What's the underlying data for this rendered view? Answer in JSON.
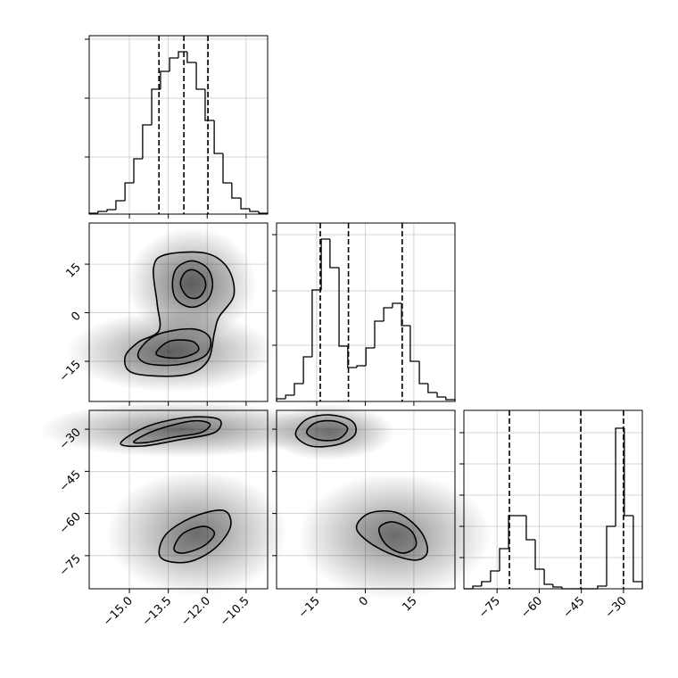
{
  "chart_data": {
    "type": "corner",
    "color": "#000000",
    "grid": true,
    "params": [
      {
        "lim": [
          -16.55,
          -9.67
        ],
        "ticks": [
          {
            "value": -15.0,
            "label": "−15.0"
          },
          {
            "value": -13.5,
            "label": "−13.5"
          },
          {
            "value": -12.0,
            "label": "−12.0"
          },
          {
            "value": -10.5,
            "label": "−10.5"
          }
        ]
      },
      {
        "lim": [
          -27.4,
          27.7
        ],
        "ticks": [
          {
            "value": -15,
            "label": "−15"
          },
          0,
          15
        ]
      },
      {
        "lim": [
          -86.8,
          -23.3
        ],
        "ticks": [
          {
            "value": -75,
            "label": "−75"
          },
          {
            "value": -60,
            "label": "−60"
          },
          {
            "value": -45,
            "label": "−45"
          },
          {
            "value": -30,
            "label": "−30"
          }
        ]
      }
    ],
    "histograms": [
      {
        "bins": [
          -16.55,
          -16.21,
          -15.86,
          -15.52,
          -15.17,
          -14.83,
          -14.49,
          -14.14,
          -13.8,
          -13.45,
          -13.11,
          -12.77,
          -12.42,
          -12.08,
          -11.73,
          -11.39,
          -11.05,
          -10.7,
          -10.36,
          -10.01,
          -9.67
        ],
        "counts": [
          1,
          3,
          5,
          15,
          35,
          62,
          100,
          140,
          160,
          175,
          182,
          170,
          140,
          105,
          68,
          35,
          18,
          6,
          3,
          1
        ],
        "ylim": [
          0,
          200
        ],
        "yticks": [
          64,
          130,
          196
        ],
        "quantiles": [
          -13.86,
          -12.9,
          -11.97
        ]
      },
      {
        "bins": [
          -27.4,
          -24.6,
          -21.9,
          -19.1,
          -16.4,
          -13.6,
          -10.9,
          -8.1,
          -5.4,
          -2.6,
          0.2,
          2.9,
          5.7,
          8.4,
          11.2,
          13.9,
          16.7,
          19.4,
          22.2,
          24.9,
          27.7
        ],
        "counts": [
          3,
          7,
          20,
          50,
          125,
          182,
          150,
          62,
          38,
          40,
          60,
          90,
          105,
          110,
          85,
          45,
          20,
          10,
          5,
          2
        ],
        "ylim": [
          0,
          200
        ],
        "yticks": [
          63,
          124,
          187
        ],
        "quantiles": [
          -13.9,
          -5.2,
          11.4
        ]
      },
      {
        "bins": [
          -86.8,
          -83.6,
          -80.5,
          -77.3,
          -74.1,
          -70.9,
          -67.8,
          -64.6,
          -61.4,
          -58.2,
          -55.1,
          -51.9,
          -48.7,
          -45.5,
          -42.4,
          -39.2,
          -36.0,
          -32.8,
          -29.7,
          -26.5,
          -23.3
        ],
        "counts": [
          0,
          3,
          8,
          20,
          45,
          82,
          82,
          55,
          22,
          5,
          2,
          0,
          0,
          0,
          0,
          3,
          70,
          180,
          82,
          8
        ],
        "ylim": [
          0,
          200
        ],
        "yticks": [
          35,
          70,
          105,
          140,
          175
        ],
        "quantiles": [
          -70.6,
          -45.2,
          -30.0
        ]
      }
    ],
    "panels": [
      {
        "x_param": 0,
        "y_param": 1,
        "clouds": [
          {
            "center": [
              -12.6,
              9
            ],
            "spread": [
              1.0,
              7
            ]
          },
          {
            "center": [
              -13.4,
              -12
            ],
            "spread": [
              1.6,
              5
            ]
          }
        ],
        "contours": [
          [
            [
              -14.07,
              13.8
            ],
            [
              -13.62,
              17.9
            ],
            [
              -12.07,
              18.4
            ],
            [
              -11.21,
              13.8
            ],
            [
              -10.97,
              5.5
            ],
            [
              -11.55,
              -1.4
            ],
            [
              -11.72,
              -6.1
            ],
            [
              -12.0,
              -15.1
            ],
            [
              -12.93,
              -19.3
            ],
            [
              -14.83,
              -18.7
            ],
            [
              -15.17,
              -13.8
            ],
            [
              -14.66,
              -9.1
            ],
            [
              -13.86,
              -5.5
            ],
            [
              -13.93,
              2.8
            ]
          ],
          [
            [
              -13.34,
              8.8
            ],
            [
              -13.17,
              13.8
            ],
            [
              -12.59,
              16.0
            ],
            [
              -12.0,
              13.8
            ],
            [
              -11.79,
              8.8
            ],
            [
              -12.0,
              3.9
            ],
            [
              -12.59,
              1.7
            ],
            [
              -13.17,
              3.9
            ]
          ],
          [
            [
              -13.03,
              8.8
            ],
            [
              -12.86,
              12.4
            ],
            [
              -12.52,
              13.2
            ],
            [
              -12.14,
              11.0
            ],
            [
              -12.07,
              7.7
            ],
            [
              -12.34,
              4.7
            ],
            [
              -12.76,
              5.0
            ]
          ],
          [
            [
              -14.66,
              -12.4
            ],
            [
              -13.97,
              -6.9
            ],
            [
              -12.59,
              -5.0
            ],
            [
              -11.9,
              -7.7
            ],
            [
              -12.07,
              -13.2
            ],
            [
              -13.1,
              -16.0
            ],
            [
              -14.31,
              -15.7
            ]
          ],
          [
            [
              -13.97,
              -12.4
            ],
            [
              -13.45,
              -8.8
            ],
            [
              -12.59,
              -8.8
            ],
            [
              -12.34,
              -11.6
            ],
            [
              -12.93,
              -13.8
            ],
            [
              -13.62,
              -13.8
            ]
          ]
        ]
      },
      {
        "x_param": 0,
        "y_param": 2,
        "clouds": [
          {
            "center": [
              -13,
              -30
            ],
            "spread": [
              2.2,
              4
            ]
          },
          {
            "center": [
              -12.4,
              -67
            ],
            "spread": [
              1.4,
              9
            ]
          }
        ],
        "contours": [
          [
            [
              -15.34,
              -35.0
            ],
            [
              -14.31,
              -29.0
            ],
            [
              -12.76,
              -25.8
            ],
            [
              -11.55,
              -26.5
            ],
            [
              -11.72,
              -31.2
            ],
            [
              -13.1,
              -33.8
            ],
            [
              -14.48,
              -36.0
            ]
          ],
          [
            [
              -14.83,
              -34.4
            ],
            [
              -13.97,
              -30.3
            ],
            [
              -12.59,
              -27.1
            ],
            [
              -11.9,
              -28.1
            ],
            [
              -12.24,
              -31.2
            ],
            [
              -13.28,
              -32.8
            ],
            [
              -14.31,
              -34.7
            ]
          ],
          [
            [
              -13.79,
              -75.7
            ],
            [
              -13.62,
              -67.8
            ],
            [
              -12.59,
              -61.4
            ],
            [
              -11.38,
              -58.9
            ],
            [
              -11.1,
              -64.6
            ],
            [
              -11.72,
              -72.5
            ],
            [
              -12.76,
              -77.3
            ]
          ],
          [
            [
              -13.28,
              -72.5
            ],
            [
              -12.93,
              -67.1
            ],
            [
              -12.14,
              -64.6
            ],
            [
              -11.72,
              -67.1
            ],
            [
              -12.14,
              -71.6
            ],
            [
              -12.93,
              -74.1
            ]
          ]
        ]
      },
      {
        "x_param": 1,
        "y_param": 2,
        "clouds": [
          {
            "center": [
              -11,
              -31
            ],
            "spread": [
              8,
              4
            ]
          },
          {
            "center": [
              9,
              -68
            ],
            "spread": [
              12,
              9
            ]
          }
        ],
        "contours": [
          [
            [
              -21.5,
              -31.9
            ],
            [
              -18.1,
              -26.5
            ],
            [
              -11.1,
              -24.9
            ],
            [
              -4.1,
              -27.1
            ],
            [
              -3.2,
              -31.9
            ],
            [
              -8.3,
              -35.4
            ],
            [
              -16.7,
              -36.0
            ]
          ],
          [
            [
              -18.1,
              -31.2
            ],
            [
              -15.3,
              -27.7
            ],
            [
              -9.7,
              -27.1
            ],
            [
              -5.5,
              -29.6
            ],
            [
              -8.3,
              -33.5
            ],
            [
              -14.4,
              -33.8
            ]
          ],
          [
            [
              -2.7,
              -64.6
            ],
            [
              1.5,
              -59.8
            ],
            [
              10.0,
              -59.8
            ],
            [
              17.0,
              -66.2
            ],
            [
              19.2,
              -73.5
            ],
            [
              15.6,
              -76.6
            ],
            [
              7.2,
              -74.1
            ],
            [
              0.1,
              -69.3
            ]
          ],
          [
            [
              4.3,
              -65.2
            ],
            [
              8.6,
              -63.0
            ],
            [
              14.2,
              -66.2
            ],
            [
              15.6,
              -71.6
            ],
            [
              11.4,
              -74.1
            ],
            [
              6.3,
              -70.9
            ]
          ]
        ]
      }
    ]
  }
}
